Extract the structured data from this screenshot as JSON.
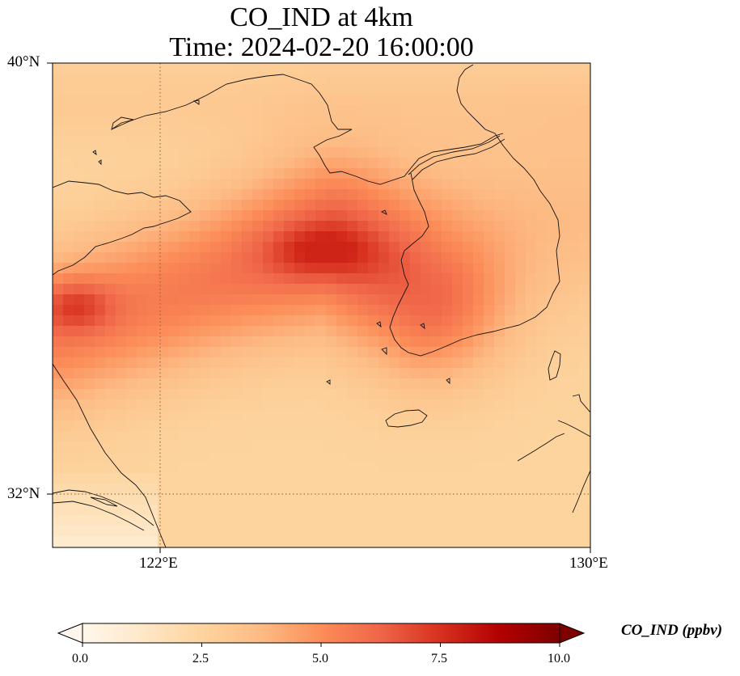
{
  "title": {
    "line1": "CO_IND at 4km",
    "line2": "Time: 2024-02-20 16:00:00"
  },
  "axes": {
    "lat_labels": [
      "40°N",
      "32°N"
    ],
    "lon_labels": [
      "122°E",
      "130°E"
    ],
    "lat_range": [
      31,
      40
    ],
    "lon_range": [
      120,
      130
    ],
    "gridlines": {
      "lat": 32,
      "lon": 122,
      "style": "dotted"
    }
  },
  "colorbar": {
    "label": "CO_IND (ppbv)",
    "ticks": [
      "0.0",
      "2.5",
      "5.0",
      "7.5",
      "10.0"
    ],
    "range": [
      0,
      10
    ],
    "extend": "both",
    "colormap": "OrRd",
    "colors": [
      "#fff7ec",
      "#fee8c8",
      "#fdd49e",
      "#fdbb84",
      "#fc8d59",
      "#ef6548",
      "#d7301f",
      "#b30000",
      "#7f0000"
    ]
  },
  "chart_data": {
    "type": "heatmap",
    "title": "CO_IND at 4km\nTime: 2024-02-20 16:00:00",
    "variable": "CO_IND",
    "units": "ppbv",
    "level": "4km",
    "time": "2024-02-20 16:00:00",
    "lon_range": [
      120,
      130
    ],
    "lat_range": [
      31,
      40
    ],
    "vmin": 0,
    "vmax": 10,
    "approx_field": {
      "max_value": 7.5,
      "band_core": [
        [
          120.1,
          35.0
        ],
        [
          125.2,
          36.7
        ],
        [
          127.0,
          35.5
        ]
      ],
      "background_low": 2.5
    }
  }
}
